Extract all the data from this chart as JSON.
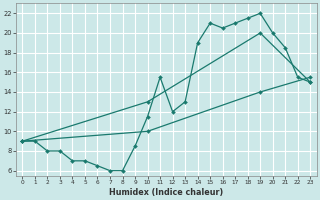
{
  "title": "",
  "xlabel": "Humidex (Indice chaleur)",
  "ylabel": "",
  "xlim": [
    -0.5,
    23.5
  ],
  "ylim": [
    5.5,
    23
  ],
  "xticks": [
    0,
    1,
    2,
    3,
    4,
    5,
    6,
    7,
    8,
    9,
    10,
    11,
    12,
    13,
    14,
    15,
    16,
    17,
    18,
    19,
    20,
    21,
    22,
    23
  ],
  "yticks": [
    6,
    8,
    10,
    12,
    14,
    16,
    18,
    20,
    22
  ],
  "bg_color": "#cce8e8",
  "line_color": "#1a7a6e",
  "grid_color": "#ffffff",
  "figsize": [
    3.2,
    2.0
  ],
  "dpi": 100,
  "series": [
    {
      "x": [
        0,
        1,
        2,
        3,
        4,
        5,
        6,
        7,
        8,
        9,
        10,
        11,
        12,
        13,
        14,
        15,
        16,
        17,
        18,
        19,
        20,
        21,
        22,
        23
      ],
      "y": [
        9,
        9,
        8,
        8,
        7,
        7,
        6.5,
        6,
        6,
        8.5,
        11.5,
        15.5,
        12,
        13,
        19,
        21,
        20.5,
        21,
        21.5,
        22,
        20,
        18.5,
        15.5,
        15
      ]
    },
    {
      "x": [
        0,
        10,
        19,
        23
      ],
      "y": [
        9,
        13,
        20,
        15
      ]
    },
    {
      "x": [
        0,
        10,
        19,
        23
      ],
      "y": [
        9,
        10,
        14,
        15.5
      ]
    }
  ]
}
